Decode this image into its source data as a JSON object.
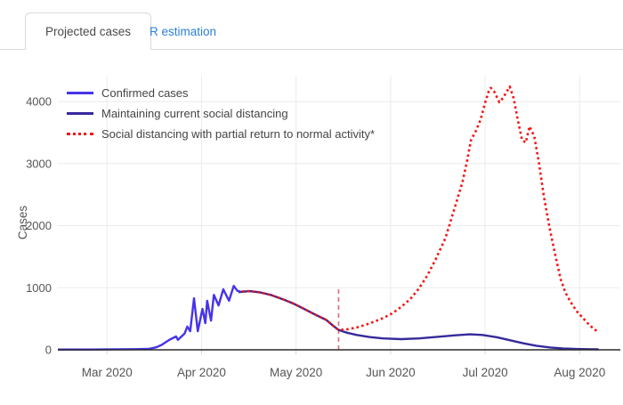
{
  "tabs": {
    "active_label": "Projected cases",
    "inactive_label": "R estimation",
    "active_text_color": "#4a4a4a",
    "inactive_text_color": "#2d80d4"
  },
  "chart_data": {
    "type": "line",
    "title": "",
    "xlabel": "",
    "ylabel": "Cases",
    "grid": true,
    "legend_position": "top-left inside plot",
    "x_unit": "months since 2020-03-01 (0 = Mar 1 2020, 1 = Apr 1 2020, ...)",
    "x_range": [
      -0.52,
      5.43
    ],
    "y_range": [
      0,
      4417
    ],
    "x_ticks": [
      {
        "x": 0,
        "label": "Mar 2020"
      },
      {
        "x": 1,
        "label": "Apr 2020"
      },
      {
        "x": 2,
        "label": "May 2020"
      },
      {
        "x": 3,
        "label": "Jun 2020"
      },
      {
        "x": 4,
        "label": "Jul 2020"
      },
      {
        "x": 5,
        "label": "Aug 2020"
      }
    ],
    "y_ticks": [
      0,
      1000,
      2000,
      3000,
      4000
    ],
    "colors": {
      "grid": "#ebebeb",
      "axis_line": "#2a2a2a",
      "tick_mark": "#d5d5d5",
      "tick_text": "#555555",
      "axis_title_text": "#555555"
    },
    "series": [
      {
        "name": "Confirmed cases",
        "color": "#4533eb",
        "style": "solid",
        "points": [
          [
            -0.52,
            5
          ],
          [
            -0.2,
            5
          ],
          [
            0.1,
            8
          ],
          [
            0.28,
            10
          ],
          [
            0.44,
            15
          ],
          [
            0.52,
            40
          ],
          [
            0.58,
            80
          ],
          [
            0.66,
            160
          ],
          [
            0.73,
            215
          ],
          [
            0.75,
            160
          ],
          [
            0.82,
            260
          ],
          [
            0.85,
            375
          ],
          [
            0.88,
            300
          ],
          [
            0.92,
            830
          ],
          [
            0.96,
            300
          ],
          [
            1.01,
            660
          ],
          [
            1.04,
            430
          ],
          [
            1.06,
            790
          ],
          [
            1.1,
            470
          ],
          [
            1.13,
            885
          ],
          [
            1.18,
            715
          ],
          [
            1.23,
            975
          ],
          [
            1.29,
            790
          ],
          [
            1.34,
            1030
          ],
          [
            1.38,
            950
          ],
          [
            1.41,
            940
          ]
        ]
      },
      {
        "name": "Maintaining current social distancing",
        "color": "#352a9b",
        "style": "solid",
        "points": [
          [
            1.39,
            930
          ],
          [
            1.51,
            945
          ],
          [
            1.62,
            925
          ],
          [
            1.74,
            880
          ],
          [
            1.86,
            815
          ],
          [
            1.98,
            740
          ],
          [
            2.09,
            655
          ],
          [
            2.2,
            570
          ],
          [
            2.32,
            480
          ],
          [
            2.39,
            390
          ],
          [
            2.45,
            320
          ],
          [
            2.54,
            275
          ],
          [
            2.64,
            240
          ],
          [
            2.78,
            205
          ],
          [
            2.92,
            183
          ],
          [
            3.11,
            172
          ],
          [
            3.3,
            183
          ],
          [
            3.48,
            207
          ],
          [
            3.67,
            233
          ],
          [
            3.84,
            250
          ],
          [
            3.97,
            240
          ],
          [
            4.12,
            203
          ],
          [
            4.26,
            155
          ],
          [
            4.41,
            103
          ],
          [
            4.54,
            66
          ],
          [
            4.69,
            38
          ],
          [
            4.82,
            22
          ],
          [
            4.97,
            13
          ],
          [
            5.08,
            10
          ],
          [
            5.2,
            8
          ]
        ]
      },
      {
        "name": "Social distancing with partial return to normal activity*",
        "color": "#f31515",
        "style": "dotted",
        "points": [
          [
            1.43,
            941
          ],
          [
            1.51,
            945
          ],
          [
            1.62,
            925
          ],
          [
            1.74,
            880
          ],
          [
            1.86,
            815
          ],
          [
            1.98,
            740
          ],
          [
            2.09,
            655
          ],
          [
            2.2,
            570
          ],
          [
            2.32,
            480
          ],
          [
            2.39,
            390
          ],
          [
            2.45,
            320
          ],
          [
            2.54,
            330
          ],
          [
            2.64,
            360
          ],
          [
            2.73,
            400
          ],
          [
            2.82,
            450
          ],
          [
            2.92,
            510
          ],
          [
            3.02,
            590
          ],
          [
            3.11,
            690
          ],
          [
            3.21,
            820
          ],
          [
            3.3,
            990
          ],
          [
            3.39,
            1200
          ],
          [
            3.48,
            1470
          ],
          [
            3.58,
            1800
          ],
          [
            3.67,
            2250
          ],
          [
            3.76,
            2700
          ],
          [
            3.81,
            3050
          ],
          [
            3.85,
            3380
          ],
          [
            3.9,
            3520
          ],
          [
            3.95,
            3700
          ],
          [
            4.0,
            3980
          ],
          [
            4.04,
            4180
          ],
          [
            4.06,
            4220
          ],
          [
            4.1,
            4150
          ],
          [
            4.15,
            3990
          ],
          [
            4.19,
            4060
          ],
          [
            4.26,
            4240
          ],
          [
            4.3,
            4060
          ],
          [
            4.34,
            3750
          ],
          [
            4.39,
            3380
          ],
          [
            4.43,
            3340
          ],
          [
            4.47,
            3600
          ],
          [
            4.52,
            3440
          ],
          [
            4.57,
            3000
          ],
          [
            4.62,
            2480
          ],
          [
            4.68,
            1980
          ],
          [
            4.74,
            1540
          ],
          [
            4.8,
            1130
          ],
          [
            4.85,
            920
          ],
          [
            4.9,
            780
          ],
          [
            4.97,
            620
          ],
          [
            5.03,
            520
          ],
          [
            5.09,
            420
          ],
          [
            5.14,
            350
          ],
          [
            5.19,
            290
          ]
        ]
      }
    ],
    "annotations": [
      {
        "id": "projection-start-line",
        "type": "vertical-dashed-line",
        "x": 2.45,
        "y_from": 0,
        "y_to": 1020,
        "color": "#e06a78"
      }
    ]
  }
}
